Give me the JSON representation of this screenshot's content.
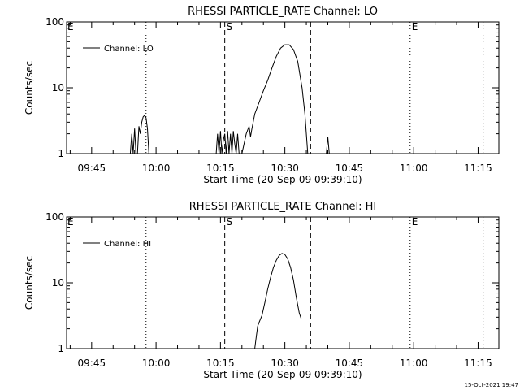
{
  "footer_timestamp": "15-Oct-2021 19:47",
  "chart_data": [
    {
      "type": "line",
      "title": "RHESSI PARTICLE_RATE Channel: LO",
      "xlabel": "Start Time (20-Sep-09 09:39:10)",
      "ylabel": "Counts/sec",
      "yscale": "log",
      "ylim": [
        1,
        100
      ],
      "xlim": [
        "09:39:10",
        "11:19:50"
      ],
      "x_ticks": [
        "09:45",
        "10:00",
        "10:15",
        "10:30",
        "10:45",
        "11:00",
        "11:15"
      ],
      "y_ticks": [
        "1",
        "10",
        "100"
      ],
      "legend": "top-left",
      "series": [
        {
          "name": "Channel: LO",
          "points": [
            [
              "09:54:00",
              1.0
            ],
            [
              "09:54:20",
              2.0
            ],
            [
              "09:54:40",
              1.0
            ],
            [
              "09:55:00",
              2.4
            ],
            [
              "09:55:20",
              1.0
            ],
            [
              "09:55:40",
              1.0
            ],
            [
              "09:56:00",
              2.6
            ],
            [
              "09:56:20",
              2.0
            ],
            [
              "09:56:40",
              3.0
            ],
            [
              "09:57:00",
              3.6
            ],
            [
              "09:57:20",
              3.8
            ],
            [
              "09:57:40",
              3.5
            ],
            [
              "09:58:00",
              2.4
            ],
            [
              "09:58:20",
              1.0
            ],
            [
              "10:14:00",
              1.0
            ],
            [
              "10:14:20",
              2.0
            ],
            [
              "10:14:40",
              1.0
            ],
            [
              "10:15:00",
              2.2
            ],
            [
              "10:15:20",
              1.0
            ],
            [
              "10:15:40",
              1.6
            ],
            [
              "10:16:00",
              2.0
            ],
            [
              "10:16:20",
              1.0
            ],
            [
              "10:16:40",
              2.2
            ],
            [
              "10:17:00",
              1.0
            ],
            [
              "10:17:20",
              2.0
            ],
            [
              "10:17:40",
              1.0
            ],
            [
              "10:18:00",
              2.2
            ],
            [
              "10:18:20",
              1.4
            ],
            [
              "10:18:40",
              1.0
            ],
            [
              "10:19:00",
              2.0
            ],
            [
              "10:19:20",
              1.0
            ],
            [
              "10:20:00",
              1.0
            ],
            [
              "10:21:00",
              2.0
            ],
            [
              "10:21:40",
              2.6
            ],
            [
              "10:22:00",
              1.8
            ],
            [
              "10:22:20",
              2.4
            ],
            [
              "10:23:00",
              4.0
            ],
            [
              "10:24:00",
              6.0
            ],
            [
              "10:25:00",
              9.0
            ],
            [
              "10:26:00",
              13.0
            ],
            [
              "10:27:00",
              20.0
            ],
            [
              "10:28:00",
              30.0
            ],
            [
              "10:29:00",
              40.0
            ],
            [
              "10:30:00",
              45.0
            ],
            [
              "10:31:00",
              45.0
            ],
            [
              "10:32:00",
              38.0
            ],
            [
              "10:33:00",
              25.0
            ],
            [
              "10:34:00",
              10.0
            ],
            [
              "10:34:40",
              4.0
            ],
            [
              "10:35:20",
              1.0
            ],
            [
              "10:39:40",
              1.0
            ],
            [
              "10:40:00",
              1.8
            ],
            [
              "10:40:20",
              1.0
            ]
          ]
        }
      ],
      "vlines": [
        {
          "x": "09:57:40",
          "style": "dotted"
        },
        {
          "x": "10:16:00",
          "style": "dashed",
          "label": "S"
        },
        {
          "x": "10:36:00",
          "style": "dashed"
        },
        {
          "x": "10:59:10",
          "style": "dotted",
          "label": "E"
        },
        {
          "x": "11:16:10",
          "style": "dotted"
        }
      ],
      "corner_marker": "E"
    },
    {
      "type": "line",
      "title": "RHESSI PARTICLE_RATE Channel: HI",
      "xlabel": "Start Time (20-Sep-09 09:39:10)",
      "ylabel": "Counts/sec",
      "yscale": "log",
      "ylim": [
        1,
        100
      ],
      "xlim": [
        "09:39:10",
        "11:19:50"
      ],
      "x_ticks": [
        "09:45",
        "10:00",
        "10:15",
        "10:30",
        "10:45",
        "11:00",
        "11:15"
      ],
      "y_ticks": [
        "1",
        "10",
        "100"
      ],
      "legend": "top-left",
      "series": [
        {
          "name": "Channel: HI",
          "points": [
            [
              "10:23:00",
              1.0
            ],
            [
              "10:23:20",
              1.5
            ],
            [
              "10:23:40",
              2.2
            ],
            [
              "10:24:00",
              2.5
            ],
            [
              "10:24:40",
              3.2
            ],
            [
              "10:25:20",
              5.0
            ],
            [
              "10:26:00",
              8.0
            ],
            [
              "10:26:40",
              12.0
            ],
            [
              "10:27:20",
              17.0
            ],
            [
              "10:28:00",
              22.0
            ],
            [
              "10:28:40",
              26.0
            ],
            [
              "10:29:20",
              28.0
            ],
            [
              "10:30:00",
              27.0
            ],
            [
              "10:30:40",
              23.0
            ],
            [
              "10:31:20",
              17.0
            ],
            [
              "10:32:00",
              11.0
            ],
            [
              "10:32:40",
              6.0
            ],
            [
              "10:33:20",
              3.5
            ],
            [
              "10:33:50",
              2.8
            ]
          ]
        }
      ],
      "vlines": [
        {
          "x": "09:57:40",
          "style": "dotted"
        },
        {
          "x": "10:16:00",
          "style": "dashed",
          "label": "S"
        },
        {
          "x": "10:36:00",
          "style": "dashed"
        },
        {
          "x": "10:59:10",
          "style": "dotted",
          "label": "E"
        },
        {
          "x": "11:16:10",
          "style": "dotted"
        }
      ],
      "corner_marker": "E"
    }
  ]
}
